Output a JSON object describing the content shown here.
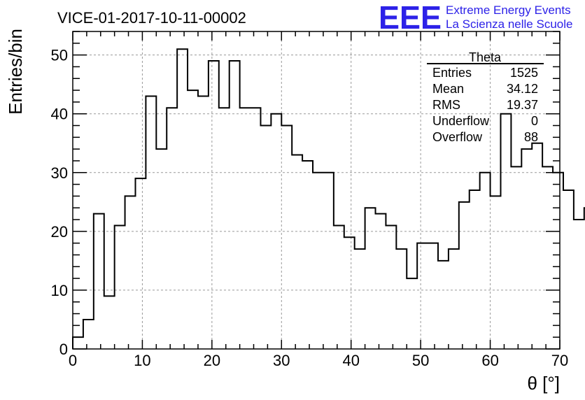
{
  "header": {
    "title": "VICE-01-2017-10-11-00002",
    "logo_letters": "EEE",
    "logo_line1": "Extreme Energy Events",
    "logo_line2": "La Scienza nelle Scuole",
    "logo_color": "#2d22e8"
  },
  "stats_box": {
    "title": "Theta",
    "rows": [
      {
        "label": "Entries",
        "value": "1525"
      },
      {
        "label": "Mean",
        "value": "34.12"
      },
      {
        "label": "RMS",
        "value": "19.37"
      },
      {
        "label": "Underflow",
        "value": "0"
      },
      {
        "label": "Overflow",
        "value": "88"
      }
    ]
  },
  "chart_data": {
    "type": "bar",
    "histogram": true,
    "title": "VICE-01-2017-10-11-00002",
    "xlabel": "θ [°]",
    "ylabel": "Entries/bin",
    "xlim": [
      0,
      70
    ],
    "ylim": [
      0,
      54
    ],
    "grid": true,
    "x_ticks": [
      0,
      10,
      20,
      30,
      40,
      50,
      60,
      70
    ],
    "y_ticks": [
      0,
      10,
      20,
      30,
      40,
      50
    ],
    "bin_width": 1.5,
    "bin_edges_start": 0,
    "values": [
      2,
      5,
      23,
      9,
      21,
      26,
      29,
      43,
      34,
      41,
      51,
      44,
      43,
      49,
      41,
      49,
      41,
      41,
      38,
      40,
      38,
      33,
      32,
      30,
      30,
      21,
      19,
      17,
      24,
      23,
      21,
      17,
      12,
      18,
      18,
      15,
      17,
      25,
      27,
      30,
      26,
      40,
      31,
      34,
      35,
      31,
      30,
      27,
      22,
      24
    ],
    "line_color": "#000000",
    "grid_color": "#999999"
  }
}
